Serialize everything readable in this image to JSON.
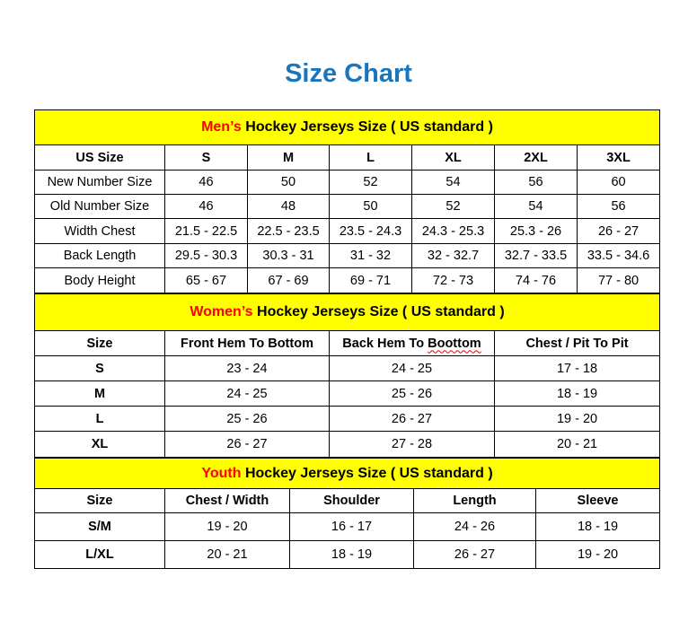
{
  "title": "Size Chart",
  "colors": {
    "title": "#1b75bb",
    "section_bg": "#ffff00",
    "section_accent": "#ff0000"
  },
  "men": {
    "heading_accent": "Men’s",
    "heading_rest": " Hockey Jerseys Size ( US standard )",
    "columns": [
      "US Size",
      "S",
      "M",
      "L",
      "XL",
      "2XL",
      "3XL"
    ],
    "rows": [
      [
        "New Number Size",
        "46",
        "50",
        "52",
        "54",
        "56",
        "60"
      ],
      [
        "Old Number Size",
        "46",
        "48",
        "50",
        "52",
        "54",
        "56"
      ],
      [
        "Width Chest",
        "21.5 - 22.5",
        "22.5 - 23.5",
        "23.5 - 24.3",
        "24.3 - 25.3",
        "25.3 - 26",
        "26 - 27"
      ],
      [
        "Back Length",
        "29.5 - 30.3",
        "30.3 - 31",
        "31 - 32",
        "32 - 32.7",
        "32.7 - 33.5",
        "33.5 - 34.6"
      ],
      [
        "Body Height",
        "65 - 67",
        "67 - 69",
        "69 - 71",
        "72 - 73",
        "74 - 76",
        "77 - 80"
      ]
    ]
  },
  "women": {
    "heading_accent": "Women’s",
    "heading_rest": " Hockey Jerseys Size ( US standard )",
    "columns": [
      "Size",
      "Front Hem To Bottom",
      "Back Hem To Boottom",
      "Chest / Pit To Pit"
    ],
    "rows": [
      [
        "S",
        "23 - 24",
        "24 - 25",
        "17 - 18"
      ],
      [
        "M",
        "24 - 25",
        "25 - 26",
        "18 - 19"
      ],
      [
        "L",
        "25 - 26",
        "26 - 27",
        "19 - 20"
      ],
      [
        "XL",
        "26 - 27",
        "27 - 28",
        "20 - 21"
      ]
    ]
  },
  "youth": {
    "heading_accent": "Youth",
    "heading_rest": " Hockey Jerseys Size ( US standard )",
    "columns": [
      "Size",
      "Chest / Width",
      "Shoulder",
      "Length",
      "Sleeve"
    ],
    "rows": [
      [
        "S/M",
        "19 - 20",
        "16 - 17",
        "24 - 26",
        "18 - 19"
      ],
      [
        "L/XL",
        "20 - 21",
        "18 - 19",
        "26 - 27",
        "19 - 20"
      ]
    ]
  }
}
